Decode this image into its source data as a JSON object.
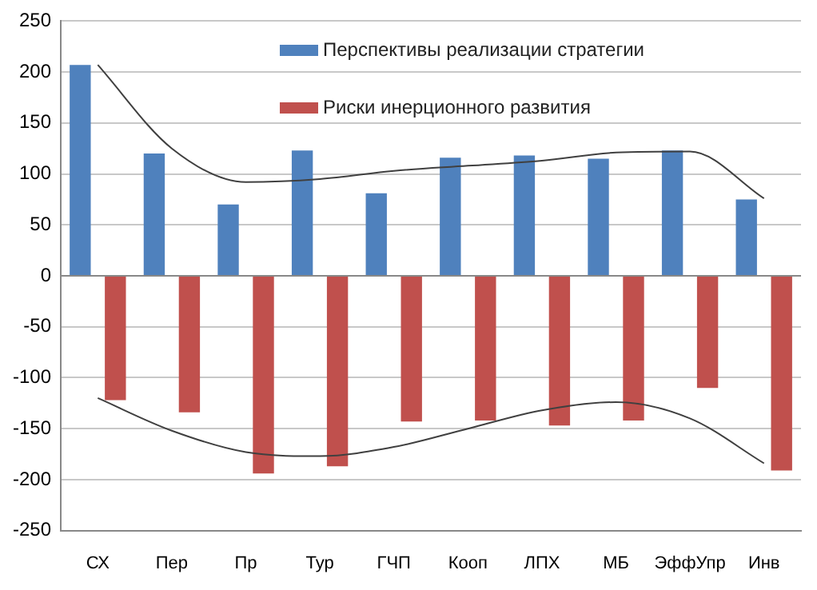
{
  "chart_data": {
    "type": "bar",
    "categories": [
      "СХ",
      "Пер",
      "Пр",
      "Тур",
      "ГЧП",
      "Кооп",
      "ЛПХ",
      "МБ",
      "ЭффУпр",
      "Инв"
    ],
    "series": [
      {
        "name": "Перспективы реализации стратегии",
        "color": "#4f81bd",
        "values": [
          207,
          120,
          70,
          123,
          81,
          116,
          118,
          115,
          123,
          75
        ]
      },
      {
        "name": "Риски инерционного развития",
        "color": "#c0504d",
        "values": [
          -122,
          -134,
          -194,
          -187,
          -143,
          -142,
          -147,
          -142,
          -110,
          -191
        ]
      },
      {
        "type": "line",
        "color": "#404040",
        "values": [
          207,
          125,
          92,
          95,
          103,
          108,
          113,
          121,
          122,
          76
        ]
      },
      {
        "type": "line",
        "color": "#404040",
        "values": [
          -120,
          -152,
          -173,
          -177,
          -168,
          -150,
          -132,
          -124,
          -140,
          -184
        ]
      }
    ],
    "ylim": [
      -250,
      250
    ],
    "yticks": [
      -250,
      -200,
      -150,
      -100,
      -50,
      0,
      50,
      100,
      150,
      200,
      250
    ],
    "grid": "y",
    "legend": "top",
    "marker": "none"
  }
}
